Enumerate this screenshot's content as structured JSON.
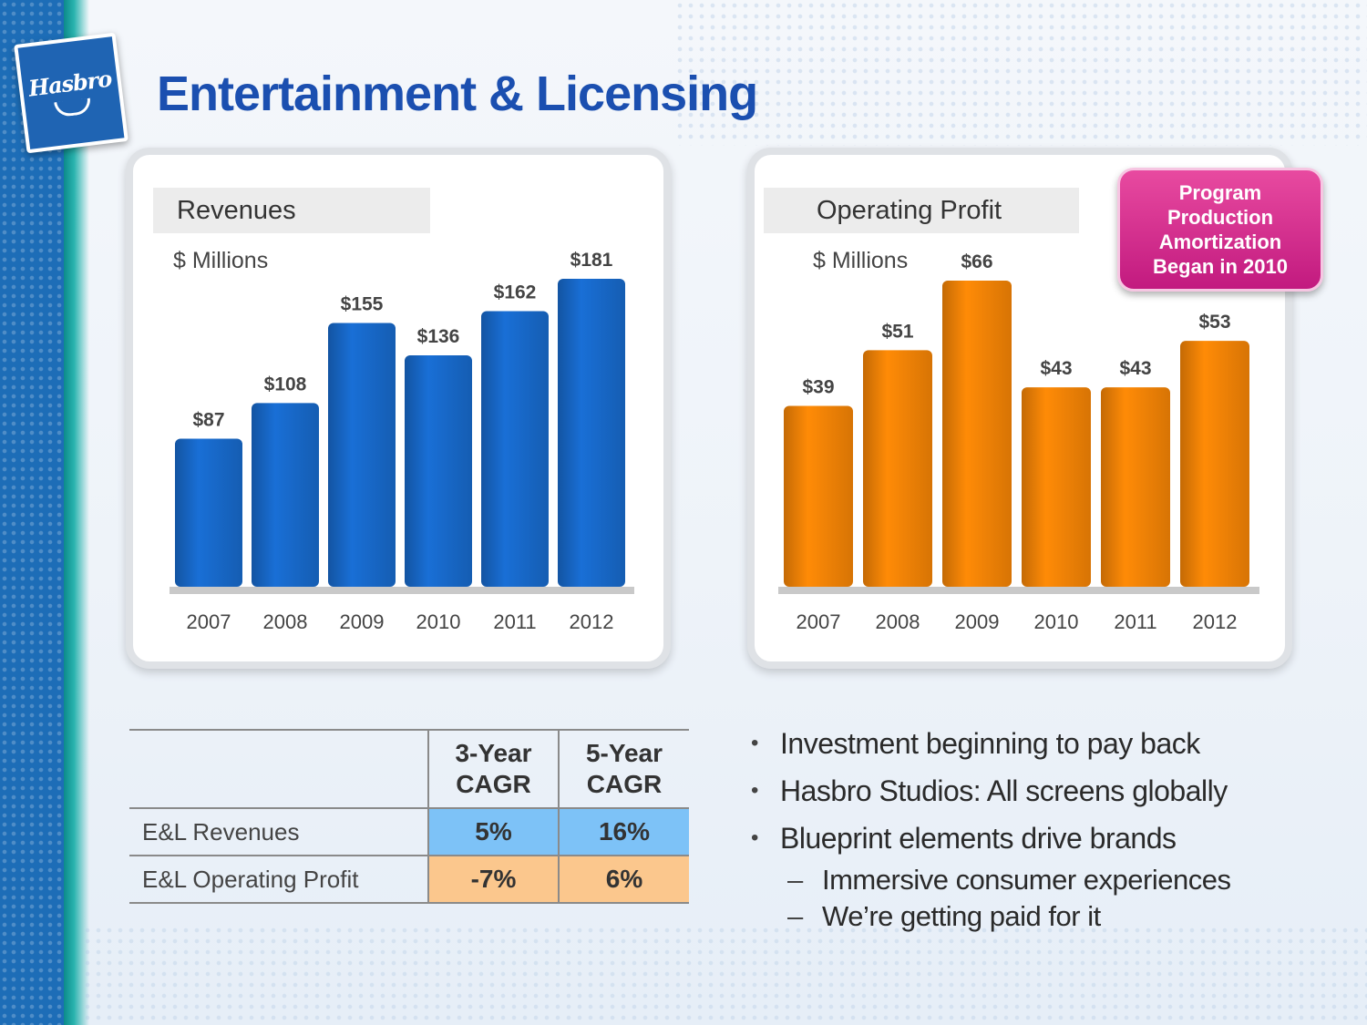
{
  "brand": {
    "logo_text": "Hasbro",
    "accent": "#1b4fb0"
  },
  "title": "Entertainment & Licensing",
  "chart_data": [
    {
      "type": "bar",
      "title": "Revenues",
      "subtitle": "$ Millions",
      "categories": [
        "2007",
        "2008",
        "2009",
        "2010",
        "2011",
        "2012"
      ],
      "values": [
        87,
        108,
        155,
        136,
        162,
        181
      ],
      "labels": [
        "$87",
        "$108",
        "$155",
        "$136",
        "$162",
        "$181"
      ],
      "color": "#1767c6",
      "ylim": [
        0,
        181
      ],
      "grid": false
    },
    {
      "type": "bar",
      "title": "Operating Profit",
      "subtitle": "$ Millions",
      "categories": [
        "2007",
        "2008",
        "2009",
        "2010",
        "2011",
        "2012"
      ],
      "values": [
        39,
        51,
        66,
        43,
        43,
        53
      ],
      "labels": [
        "$39",
        "$51",
        "$66",
        "$43",
        "$43",
        "$53"
      ],
      "color": "#ef8106",
      "ylim": [
        0,
        66
      ],
      "grid": false
    }
  ],
  "callout": {
    "lines": [
      "Program",
      "Production",
      "Amortization",
      "Began in 2010"
    ],
    "color": "#d02a8c"
  },
  "table": {
    "headers": [
      "",
      "3-Year CAGR",
      "5-Year CAGR"
    ],
    "header_lines": [
      [
        "3-Year",
        "CAGR"
      ],
      [
        "5-Year",
        "CAGR"
      ]
    ],
    "rows": [
      {
        "label": "E&L Revenues",
        "values": [
          "5%",
          "16%"
        ],
        "color": "#7dc2f7"
      },
      {
        "label": "E&L Operating Profit",
        "values": [
          "-7%",
          "6%"
        ],
        "color": "#fbc78d"
      }
    ]
  },
  "bullets": [
    {
      "text": "Investment beginning to pay back"
    },
    {
      "text": "Hasbro Studios: All screens globally"
    },
    {
      "text": "Blueprint elements drive brands",
      "subs": [
        "Immersive consumer experiences",
        "We’re getting paid for it"
      ]
    }
  ]
}
